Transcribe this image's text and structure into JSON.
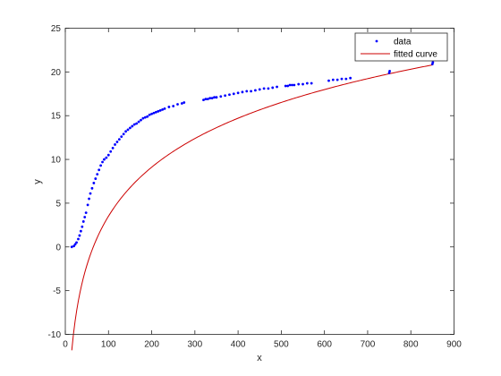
{
  "chart_data": {
    "type": "scatter",
    "xlabel": "x",
    "ylabel": "y",
    "xlim": [
      0,
      900
    ],
    "ylim": [
      -10,
      25
    ],
    "xticks": [
      0,
      100,
      200,
      300,
      400,
      500,
      600,
      700,
      800,
      900
    ],
    "yticks": [
      -10,
      -5,
      0,
      5,
      10,
      15,
      20,
      25
    ],
    "grid": false,
    "legend_position": "top-right",
    "series": [
      {
        "name": "data",
        "kind": "points",
        "color": "#0000ff",
        "points": [
          [
            15,
            0.0
          ],
          [
            20,
            0.1
          ],
          [
            23,
            0.3
          ],
          [
            26,
            0.5
          ],
          [
            30,
            0.9
          ],
          [
            33,
            1.3
          ],
          [
            36,
            1.8
          ],
          [
            39,
            2.3
          ],
          [
            42,
            2.9
          ],
          [
            45,
            3.4
          ],
          [
            48,
            3.9
          ],
          [
            52,
            4.8
          ],
          [
            55,
            5.5
          ],
          [
            58,
            6.1
          ],
          [
            62,
            6.7
          ],
          [
            66,
            7.3
          ],
          [
            70,
            7.8
          ],
          [
            74,
            8.3
          ],
          [
            78,
            8.8
          ],
          [
            82,
            9.3
          ],
          [
            86,
            9.7
          ],
          [
            90,
            10.0
          ],
          [
            95,
            10.2
          ],
          [
            100,
            10.5
          ],
          [
            105,
            10.9
          ],
          [
            110,
            11.3
          ],
          [
            115,
            11.7
          ],
          [
            120,
            12.0
          ],
          [
            125,
            12.3
          ],
          [
            130,
            12.6
          ],
          [
            135,
            12.9
          ],
          [
            140,
            13.2
          ],
          [
            145,
            13.4
          ],
          [
            150,
            13.6
          ],
          [
            155,
            13.8
          ],
          [
            160,
            14.0
          ],
          [
            165,
            14.1
          ],
          [
            170,
            14.3
          ],
          [
            175,
            14.5
          ],
          [
            180,
            14.7
          ],
          [
            185,
            14.8
          ],
          [
            190,
            14.9
          ],
          [
            195,
            15.1
          ],
          [
            200,
            15.2
          ],
          [
            205,
            15.3
          ],
          [
            210,
            15.4
          ],
          [
            215,
            15.5
          ],
          [
            220,
            15.6
          ],
          [
            225,
            15.7
          ],
          [
            230,
            15.8
          ],
          [
            240,
            16.0
          ],
          [
            250,
            16.1
          ],
          [
            260,
            16.3
          ],
          [
            270,
            16.4
          ],
          [
            275,
            16.5
          ],
          [
            320,
            16.8
          ],
          [
            325,
            16.9
          ],
          [
            330,
            16.9
          ],
          [
            335,
            17.0
          ],
          [
            340,
            17.0
          ],
          [
            345,
            17.1
          ],
          [
            350,
            17.1
          ],
          [
            360,
            17.2
          ],
          [
            370,
            17.3
          ],
          [
            380,
            17.4
          ],
          [
            390,
            17.5
          ],
          [
            400,
            17.6
          ],
          [
            410,
            17.7
          ],
          [
            420,
            17.8
          ],
          [
            430,
            17.8
          ],
          [
            440,
            17.9
          ],
          [
            450,
            18.0
          ],
          [
            460,
            18.1
          ],
          [
            470,
            18.1
          ],
          [
            480,
            18.2
          ],
          [
            490,
            18.3
          ],
          [
            510,
            18.4
          ],
          [
            515,
            18.4
          ],
          [
            520,
            18.5
          ],
          [
            525,
            18.5
          ],
          [
            530,
            18.5
          ],
          [
            540,
            18.6
          ],
          [
            550,
            18.6
          ],
          [
            560,
            18.7
          ],
          [
            570,
            18.7
          ],
          [
            610,
            19.0
          ],
          [
            620,
            19.1
          ],
          [
            630,
            19.1
          ],
          [
            640,
            19.2
          ],
          [
            650,
            19.2
          ],
          [
            660,
            19.3
          ],
          [
            750,
            19.9
          ],
          [
            751,
            20.1
          ],
          [
            850,
            20.9
          ],
          [
            851,
            21.1
          ]
        ]
      },
      {
        "name": "fitted curve",
        "kind": "line",
        "color": "#cc0000",
        "model": "log",
        "a": 8.08,
        "b": -33.7,
        "x_start": 15,
        "x_end": 850,
        "samples": 220
      }
    ]
  }
}
